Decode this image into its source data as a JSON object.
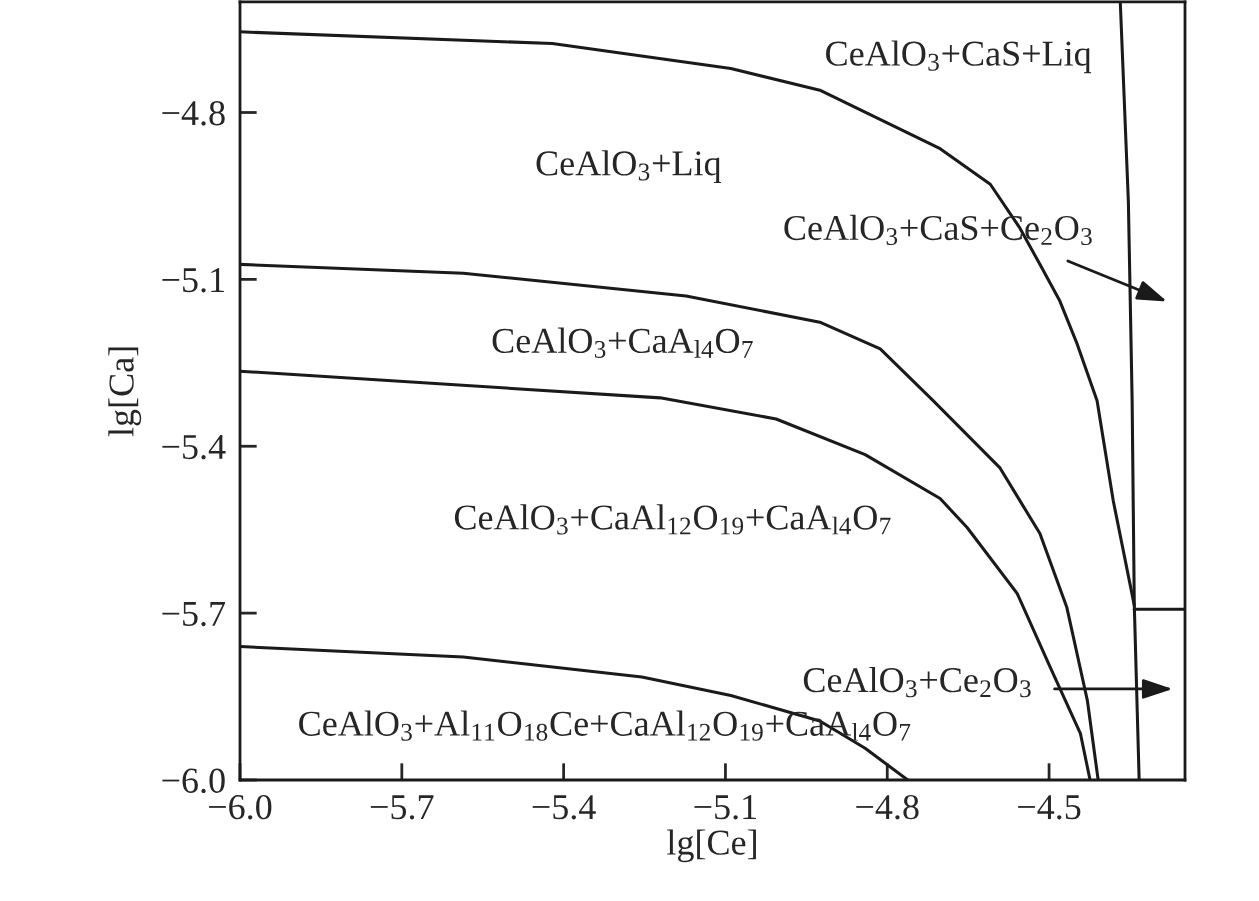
{
  "chart_data": {
    "type": "line",
    "xlabel": "lg[Ce]",
    "ylabel": "lg[Ca]",
    "xlim": [
      -6.0,
      -4.248
    ],
    "ylim": [
      -6.0,
      -4.601
    ],
    "xticks": [
      {
        "value": -6.0,
        "label": "−6.0"
      },
      {
        "value": -5.7,
        "label": "−5.7"
      },
      {
        "value": -5.4,
        "label": "−5.4"
      },
      {
        "value": -5.1,
        "label": "−5.1"
      },
      {
        "value": -4.8,
        "label": "−4.8"
      },
      {
        "value": -4.5,
        "label": "−4.5"
      }
    ],
    "yticks": [
      {
        "value": -6.0,
        "label": "−6.0"
      },
      {
        "value": -5.7,
        "label": "−5.7"
      },
      {
        "value": -5.4,
        "label": "−5.4"
      },
      {
        "value": -5.1,
        "label": "−5.1"
      },
      {
        "value": -4.8,
        "label": "−4.8"
      }
    ],
    "grid": false,
    "legend": false,
    "marker": "none",
    "line_style": "solid",
    "series": [
      {
        "color": "#1a1a1a",
        "x": [
          -6.0,
          -5.421,
          -5.09,
          -4.925,
          -4.702,
          -4.609,
          -4.554,
          -4.517,
          -4.48,
          -4.448,
          -4.411,
          -4.381,
          -4.342
        ],
        "values": [
          -4.655,
          -4.676,
          -4.721,
          -4.76,
          -4.865,
          -4.929,
          -5.008,
          -5.073,
          -5.139,
          -5.216,
          -5.318,
          -5.498,
          -5.686
        ]
      },
      {
        "color": "#1a1a1a",
        "x": [
          -6.0,
          -5.586,
          -5.173,
          -4.925,
          -4.813,
          -4.715,
          -4.591,
          -4.517,
          -4.467,
          -4.429,
          -4.409
        ],
        "values": [
          -5.073,
          -5.089,
          -5.13,
          -5.177,
          -5.225,
          -5.318,
          -5.439,
          -5.557,
          -5.69,
          -5.857,
          -6.0
        ]
      },
      {
        "color": "#1a1a1a",
        "x": [
          -6.0,
          -5.221,
          -5.006,
          -4.841,
          -4.702,
          -4.652,
          -4.559,
          -4.498,
          -4.442,
          -4.424
        ],
        "values": [
          -5.265,
          -5.313,
          -5.351,
          -5.415,
          -5.494,
          -5.546,
          -5.665,
          -5.797,
          -5.916,
          -6.0
        ]
      },
      {
        "color": "#1a1a1a",
        "x": [
          -6.0,
          -5.586,
          -5.255,
          -5.09,
          -4.925,
          -4.841,
          -4.762
        ],
        "values": [
          -5.76,
          -5.779,
          -5.815,
          -5.848,
          -5.894,
          -5.943,
          -6.0
        ]
      },
      {
        "color": "#1a1a1a",
        "x": [
          -4.368,
          -4.353,
          -4.346,
          -4.342,
          -4.333
        ],
        "values": [
          -4.601,
          -4.96,
          -5.318,
          -5.686,
          -6.0
        ]
      },
      {
        "color": "#1a1a1a",
        "x": [
          -4.342,
          -4.248
        ],
        "values": [
          -5.693,
          -5.693
        ]
      }
    ],
    "annotations": [
      "CeAlO$_{3}$+CaS+Liq",
      "CeAlO$_{3}$+Liq",
      "CeAlO$_{3}$+CaS+Ce$_{2}$O$_{3}$",
      "CeAlO$_{3}$+CaA$_{l4}$O$_{7}$",
      "CeAlO$_{3}$+CaAl$_{12}$O$_{19}$+CaA$_{l4}$O$_{7}$",
      "CeAlO$_{3}$+Ce$_{2}$O$_{3}$",
      "CeAlO$_{3}$+Al$_{11}$O$_{18}$Ce+CaAl$_{12}$O$_{19}$+CaA$_{l4}$O$_{7}$"
    ]
  }
}
